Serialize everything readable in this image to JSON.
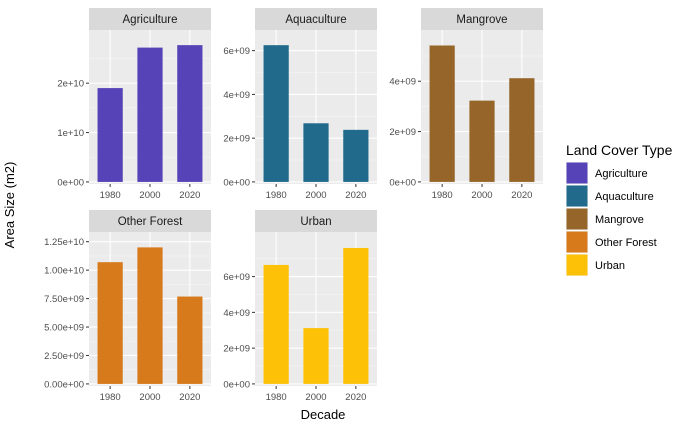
{
  "chart_data": {
    "type": "bar",
    "faceted": true,
    "xlabel": "Decade",
    "ylabel": "Area Size (m2)",
    "categories": [
      "1980",
      "2000",
      "2020"
    ],
    "legend": {
      "title": "Land Cover Type",
      "position": "right",
      "items": [
        {
          "label": "Agriculture",
          "color": "#5543b7"
        },
        {
          "label": "Aquaculture",
          "color": "#226a8c"
        },
        {
          "label": "Mangrove",
          "color": "#96652a"
        },
        {
          "label": "Other Forest",
          "color": "#d67a1b"
        },
        {
          "label": "Urban",
          "color": "#fdc207"
        }
      ]
    },
    "panels": [
      {
        "title": "Agriculture",
        "color": "#5543b7",
        "values": [
          19000000000,
          27200000000,
          27700000000
        ],
        "ylim": [
          0,
          28800000000
        ],
        "yticks": [
          0,
          10000000000,
          20000000000
        ],
        "ytick_labels": [
          "0e+00",
          "1e+10",
          "2e+10"
        ]
      },
      {
        "title": "Aquaculture",
        "color": "#226a8c",
        "values": [
          6250000000,
          2680000000,
          2380000000
        ],
        "ylim": [
          0,
          6500000000
        ],
        "yticks": [
          0,
          2000000000,
          4000000000,
          6000000000
        ],
        "ytick_labels": [
          "0e+00",
          "2e+09",
          "4e+09",
          "6e+09"
        ]
      },
      {
        "title": "Mangrove",
        "color": "#96652a",
        "values": [
          5420000000,
          3230000000,
          4120000000
        ],
        "ylim": [
          0,
          5650000000
        ],
        "yticks": [
          0,
          2000000000,
          4000000000
        ],
        "ytick_labels": [
          "0e+00",
          "2e+09",
          "4e+09"
        ]
      },
      {
        "title": "Other Forest",
        "color": "#d67a1b",
        "values": [
          10700000000,
          12000000000,
          7680000000
        ],
        "ylim": [
          0,
          12500000000
        ],
        "yticks": [
          0,
          2500000000,
          5000000000,
          7500000000,
          10000000000,
          12500000000
        ],
        "ytick_labels": [
          "0.00e+00",
          "2.50e+09",
          "5.00e+09",
          "7.50e+09",
          "1.00e+10",
          "1.25e+10"
        ]
      },
      {
        "title": "Urban",
        "color": "#fdc207",
        "values": [
          6650000000,
          3120000000,
          7600000000
        ],
        "ylim": [
          0,
          7950000000
        ],
        "yticks": [
          0,
          2000000000,
          4000000000,
          6000000000
        ],
        "ytick_labels": [
          "0e+00",
          "2e+09",
          "4e+09",
          "6e+09"
        ]
      }
    ]
  }
}
